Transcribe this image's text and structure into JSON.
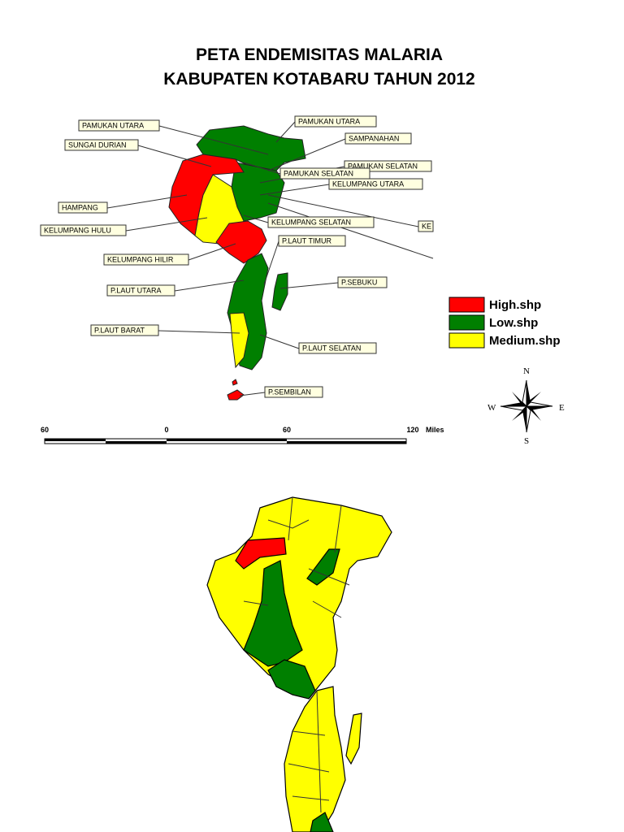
{
  "title": [
    "PETA  ENDEMISITAS MALARIA",
    "KABUPATEN KOTABARU TAHUN 2012"
  ],
  "labels": [
    "PAMUKAN UTARA",
    "SUNGAI DURIAN",
    "HAMPANG",
    "KELUMPANG HULU",
    "KELUMPANG HILIR",
    "P.LAUT UTARA",
    "P.LAUT BARAT",
    "PAMUKAN UTARA",
    "SAMPANAHAN",
    "PAMUKAN SELATAN",
    "PAMUKAN SELATAN",
    "KELUMPANG UTARA",
    "KELUMPANG SELATAN",
    "KE",
    "P.LAUT TIMUR",
    "P.SEBUKU",
    "P.LAUT SELATAN",
    "P.SEMBILAN"
  ],
  "legend": [
    {
      "label": "High.shp",
      "color": "#ff0000"
    },
    {
      "label": "Low.shp",
      "color": "#007f00"
    },
    {
      "label": "Medium.shp",
      "color": "#ffff00"
    }
  ],
  "scale": {
    "ticks": [
      "60",
      "0",
      "60",
      "120"
    ],
    "unit": "Miles"
  },
  "compass": {
    "north": "N",
    "south": "S",
    "east": "E",
    "west": "W"
  }
}
